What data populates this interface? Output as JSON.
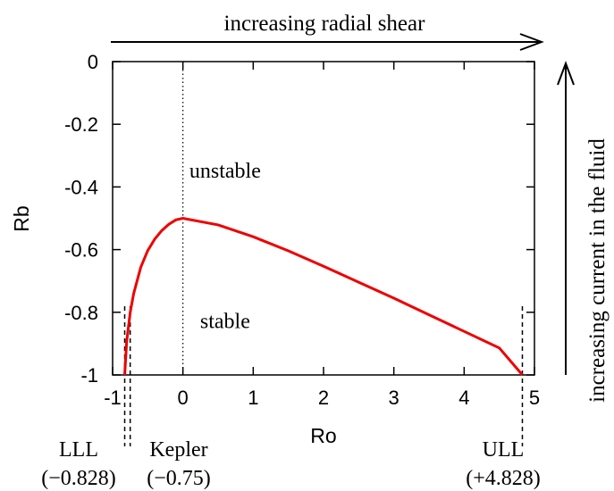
{
  "chart_data": {
    "type": "line",
    "title": "",
    "xlabel": "Ro",
    "ylabel": "Rb",
    "xlim": [
      -1,
      5
    ],
    "ylim": [
      -1,
      0
    ],
    "x_ticks": [
      "-1",
      "0",
      "1",
      "2",
      "3",
      "4",
      "5"
    ],
    "y_ticks": [
      "0",
      "-0.2",
      "-0.4",
      "-0.6",
      "-0.8",
      "-1"
    ],
    "grid": false,
    "series": [
      {
        "color": "#ee0000",
        "x": [
          -0.828,
          -0.8,
          -0.75,
          -0.7,
          -0.6,
          -0.5,
          -0.4,
          -0.3,
          -0.2,
          -0.1,
          0,
          0.5,
          1,
          1.5,
          2,
          2.5,
          3,
          3.5,
          4,
          4.5,
          4.828
        ],
        "y": [
          -1.0,
          -0.894,
          -0.8,
          -0.74,
          -0.656,
          -0.603,
          -0.566,
          -0.539,
          -0.519,
          -0.505,
          -0.5,
          -0.521,
          -0.559,
          -0.604,
          -0.653,
          -0.704,
          -0.755,
          -0.808,
          -0.861,
          -0.914,
          -1.0
        ]
      }
    ],
    "vertical_lines": [
      {
        "x": 0,
        "style": "dotted"
      },
      {
        "x": -0.828,
        "style": "dashed"
      },
      {
        "x": -0.75,
        "style": "dashed"
      },
      {
        "x": 4.828,
        "style": "dashed"
      }
    ],
    "region_labels": [
      {
        "text": "unstable",
        "x": 0.6,
        "y": -0.37
      },
      {
        "text": "stable",
        "x": 0.6,
        "y": -0.85
      }
    ],
    "markers": [
      {
        "name": "LLL",
        "value": "(−0.828)",
        "x": -0.828
      },
      {
        "name": "Kepler",
        "value": "(−0.75)",
        "x": -0.75
      },
      {
        "name": "ULL",
        "value": "(+4.828)",
        "x": 4.828
      }
    ],
    "top_arrow_label": "increasing radial shear",
    "right_arrow_label": "increasing current in the fluid"
  }
}
